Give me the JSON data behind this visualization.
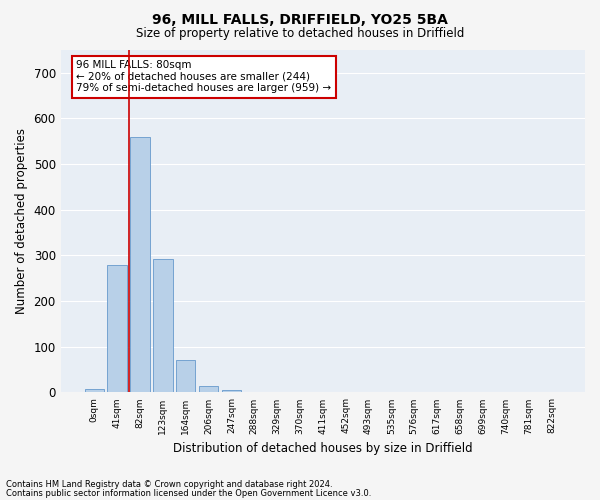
{
  "title_line1": "96, MILL FALLS, DRIFFIELD, YO25 5BA",
  "title_line2": "Size of property relative to detached houses in Driffield",
  "xlabel": "Distribution of detached houses by size in Driffield",
  "ylabel": "Number of detached properties",
  "bar_labels": [
    "0sqm",
    "41sqm",
    "82sqm",
    "123sqm",
    "164sqm",
    "206sqm",
    "247sqm",
    "288sqm",
    "329sqm",
    "370sqm",
    "411sqm",
    "452sqm",
    "493sqm",
    "535sqm",
    "576sqm",
    "617sqm",
    "658sqm",
    "699sqm",
    "740sqm",
    "781sqm",
    "822sqm"
  ],
  "bar_values": [
    8,
    280,
    560,
    293,
    70,
    15,
    5,
    0,
    0,
    0,
    0,
    0,
    0,
    0,
    0,
    0,
    0,
    0,
    0,
    0,
    0
  ],
  "bar_color": "#b8d0e8",
  "bar_edge_color": "#6699cc",
  "red_line_x": 1.5,
  "annotation_title": "96 MILL FALLS: 80sqm",
  "annotation_line1": "← 20% of detached houses are smaller (244)",
  "annotation_line2": "79% of semi-detached houses are larger (959) →",
  "annotation_box_facecolor": "#ffffff",
  "annotation_box_edgecolor": "#cc0000",
  "ylim": [
    0,
    750
  ],
  "yticks": [
    0,
    100,
    200,
    300,
    400,
    500,
    600,
    700
  ],
  "plot_bg_color": "#e8eef5",
  "fig_bg_color": "#f5f5f5",
  "grid_color": "#ffffff",
  "footer_line1": "Contains HM Land Registry data © Crown copyright and database right 2024.",
  "footer_line2": "Contains public sector information licensed under the Open Government Licence v3.0."
}
